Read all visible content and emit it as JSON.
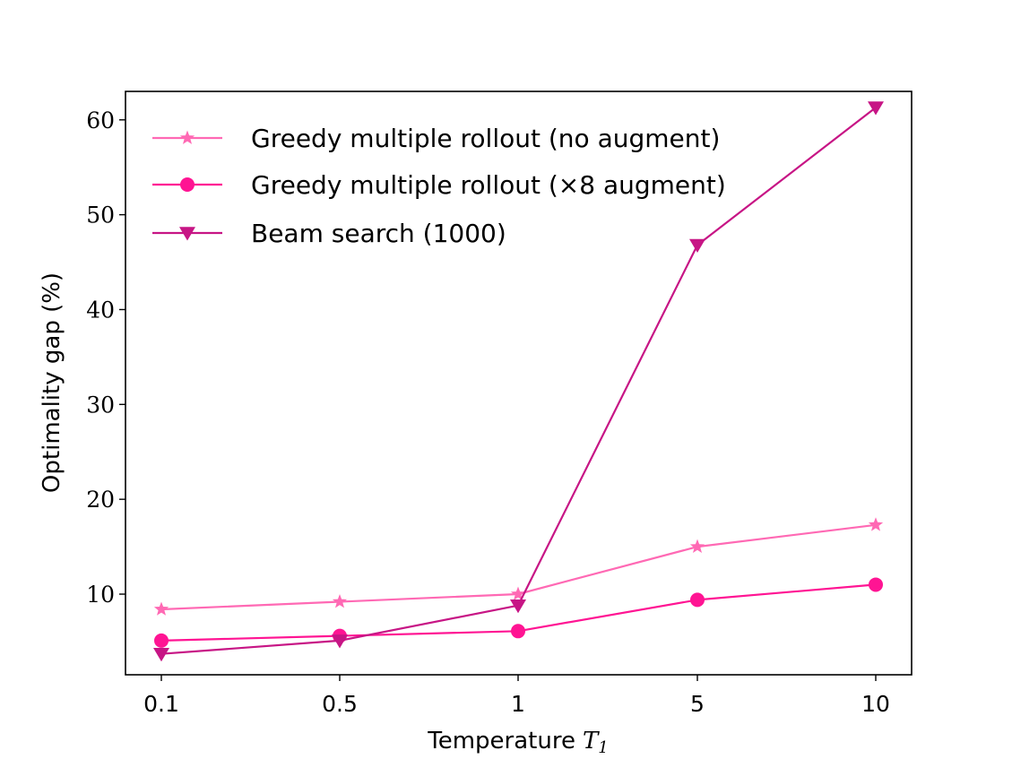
{
  "chart_data": {
    "type": "line",
    "title": "",
    "xlabel": "Temperature",
    "xlabel_symbol": "T",
    "xlabel_subscript": "1",
    "ylabel": "Optimality gap (%)",
    "categories": [
      "0.1",
      "0.5",
      "1",
      "5",
      "10"
    ],
    "yticks": [
      "10",
      "20",
      "30",
      "40",
      "50",
      "60"
    ],
    "ylim": [
      1.5,
      63.0
    ],
    "legend_position": "top-left",
    "series": [
      {
        "name": "Greedy multiple rollout (no augment)",
        "values": [
          8.4,
          9.2,
          10.0,
          15.0,
          17.3
        ],
        "color": "#ff69b4",
        "marker": "star"
      },
      {
        "name": "Greedy multiple rollout (×8 augment)",
        "values": [
          5.1,
          5.6,
          6.1,
          9.4,
          11.0
        ],
        "color": "#ff1493",
        "marker": "circle"
      },
      {
        "name": "Beam search (1000)",
        "values": [
          3.7,
          5.1,
          8.8,
          46.8,
          61.3
        ],
        "color": "#c71585",
        "marker": "triangle-down"
      }
    ]
  }
}
